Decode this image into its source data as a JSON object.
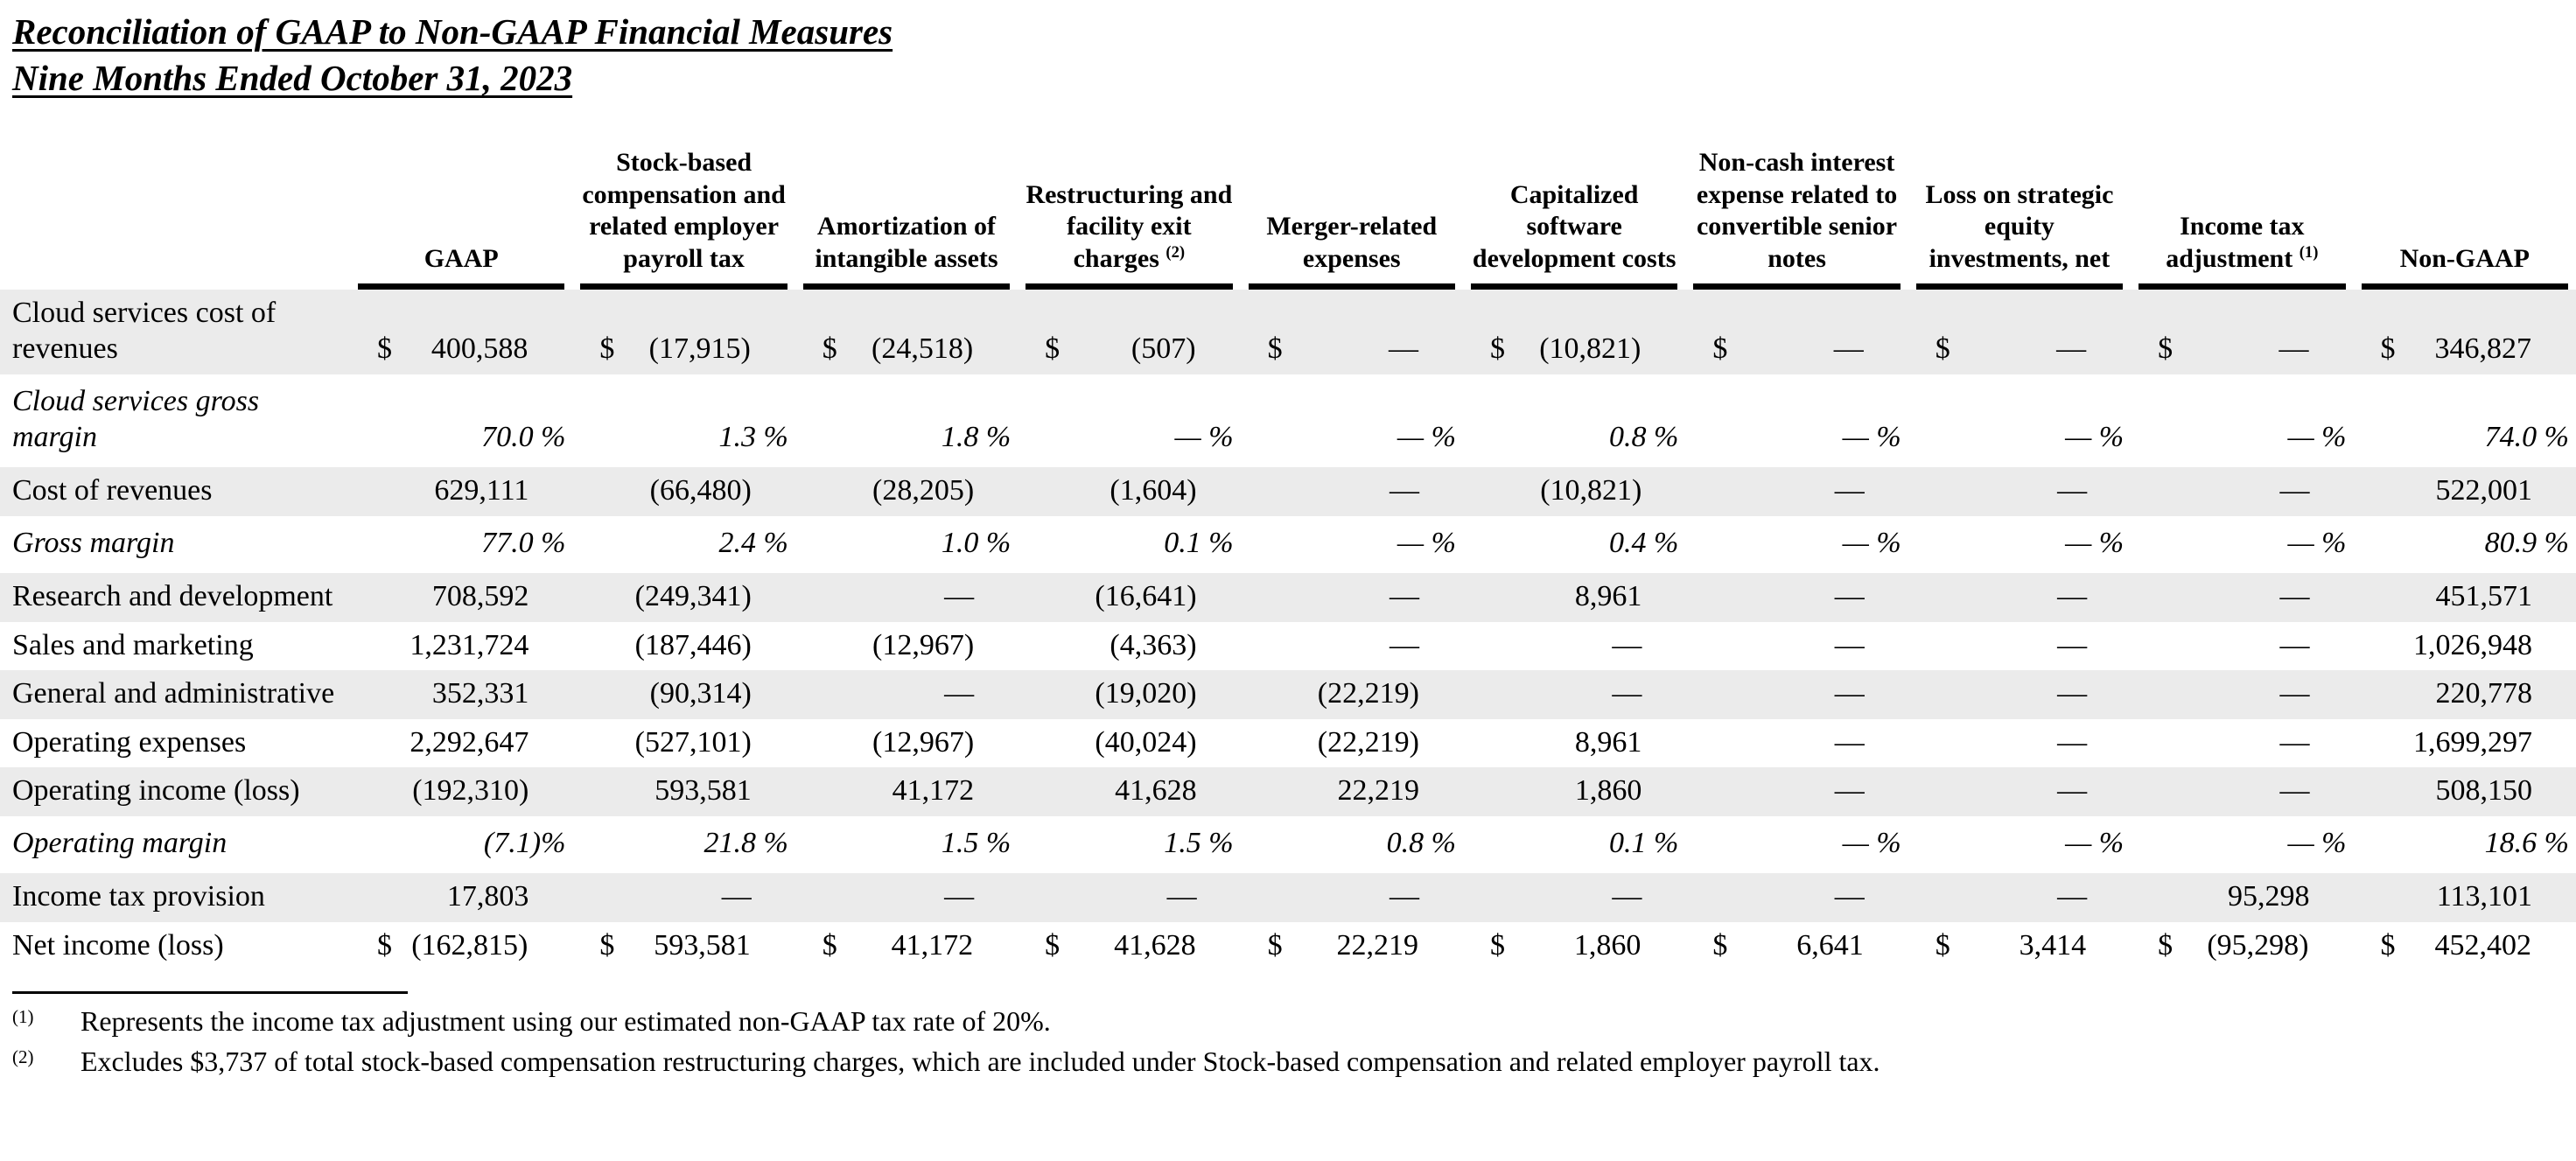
{
  "title": {
    "line1": "Reconciliation of GAAP to Non-GAAP Financial Measures",
    "line2": "Nine Months Ended October 31, 2023"
  },
  "currency_symbol": "$",
  "colors": {
    "row_shading": "#ebebeb",
    "text": "#000000",
    "rule": "#000000"
  },
  "table": {
    "columns": [
      {
        "label": "GAAP",
        "sup": ""
      },
      {
        "label": "Stock-based compensation and related employer payroll tax",
        "sup": ""
      },
      {
        "label": "Amortization of intangible assets",
        "sup": ""
      },
      {
        "label": "Restructuring and facility exit charges",
        "sup": "(2)"
      },
      {
        "label": "Merger-related expenses",
        "sup": ""
      },
      {
        "label": "Capitalized software development costs",
        "sup": ""
      },
      {
        "label": "Non-cash interest expense related to convertible senior notes",
        "sup": ""
      },
      {
        "label": "Loss on strategic equity investments, net",
        "sup": ""
      },
      {
        "label": "Income tax adjustment",
        "sup": "(1)"
      },
      {
        "label": "Non-GAAP",
        "sup": ""
      }
    ],
    "rows": [
      {
        "label": "Cloud services cost of revenues",
        "type": "dollar",
        "shaded": true,
        "values": [
          "400,588",
          "(17,915)",
          "(24,518)",
          "(507)",
          "—",
          "(10,821)",
          "—",
          "—",
          "—",
          "346,827"
        ]
      },
      {
        "label": "Cloud services gross margin",
        "type": "percent",
        "shaded": false,
        "values": [
          "70.0 %",
          "1.3 %",
          "1.8 %",
          "— %",
          "— %",
          "0.8 %",
          "— %",
          "— %",
          "— %",
          "74.0 %"
        ]
      },
      {
        "label": "Cost of revenues",
        "type": "plain",
        "shaded": true,
        "values": [
          "629,111",
          "(66,480)",
          "(28,205)",
          "(1,604)",
          "—",
          "(10,821)",
          "—",
          "—",
          "—",
          "522,001"
        ]
      },
      {
        "label": "Gross margin",
        "type": "percent",
        "shaded": false,
        "values": [
          "77.0 %",
          "2.4 %",
          "1.0 %",
          "0.1 %",
          "— %",
          "0.4 %",
          "— %",
          "— %",
          "— %",
          "80.9 %"
        ]
      },
      {
        "label": "Research and development",
        "type": "plain",
        "shaded": true,
        "values": [
          "708,592",
          "(249,341)",
          "—",
          "(16,641)",
          "—",
          "8,961",
          "—",
          "—",
          "—",
          "451,571"
        ]
      },
      {
        "label": "Sales and marketing",
        "type": "plain",
        "shaded": false,
        "values": [
          "1,231,724",
          "(187,446)",
          "(12,967)",
          "(4,363)",
          "—",
          "—",
          "—",
          "—",
          "—",
          "1,026,948"
        ]
      },
      {
        "label": "General and administrative",
        "type": "plain",
        "shaded": true,
        "values": [
          "352,331",
          "(90,314)",
          "—",
          "(19,020)",
          "(22,219)",
          "—",
          "—",
          "—",
          "—",
          "220,778"
        ]
      },
      {
        "label": "Operating expenses",
        "type": "plain",
        "shaded": false,
        "values": [
          "2,292,647",
          "(527,101)",
          "(12,967)",
          "(40,024)",
          "(22,219)",
          "8,961",
          "—",
          "—",
          "—",
          "1,699,297"
        ]
      },
      {
        "label": "Operating income (loss)",
        "type": "plain",
        "shaded": true,
        "values": [
          "(192,310)",
          "593,581",
          "41,172",
          "41,628",
          "22,219",
          "1,860",
          "—",
          "—",
          "—",
          "508,150"
        ]
      },
      {
        "label": "Operating margin",
        "type": "percent",
        "shaded": false,
        "values": [
          "(7.1)%",
          "21.8 %",
          "1.5 %",
          "1.5 %",
          "0.8 %",
          "0.1 %",
          "— %",
          "— %",
          "— %",
          "18.6 %"
        ]
      },
      {
        "label": "Income tax provision",
        "type": "plain",
        "shaded": true,
        "values": [
          "17,803",
          "—",
          "—",
          "—",
          "—",
          "—",
          "—",
          "—",
          "95,298",
          "113,101"
        ]
      },
      {
        "label": "Net income (loss)",
        "type": "dollar",
        "shaded": false,
        "values": [
          "(162,815)",
          "593,581",
          "41,172",
          "41,628",
          "22,219",
          "1,860",
          "6,641",
          "3,414",
          "(95,298)",
          "452,402"
        ]
      }
    ]
  },
  "footnotes": [
    {
      "marker": "(1)",
      "text": "Represents the income tax adjustment using our estimated non-GAAP tax rate of 20%."
    },
    {
      "marker": "(2)",
      "text": "Excludes $3,737 of total stock-based compensation restructuring charges, which are included under Stock-based compensation and related employer payroll tax."
    }
  ]
}
